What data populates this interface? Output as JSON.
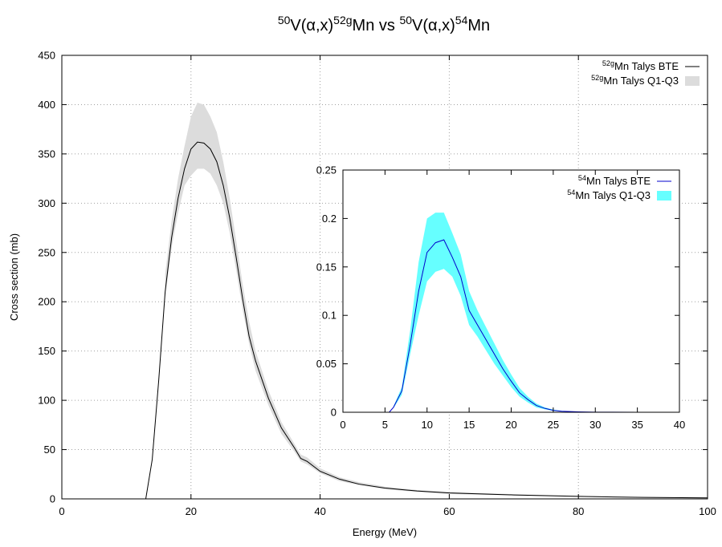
{
  "title_parts": [
    {
      "text": "50",
      "sup": true
    },
    {
      "text": "V(α,x)",
      "sup": false
    },
    {
      "text": "52g",
      "sup": true
    },
    {
      "text": "Mn vs ",
      "sup": false
    },
    {
      "text": "50",
      "sup": true
    },
    {
      "text": "V(α,x)",
      "sup": false
    },
    {
      "text": "54",
      "sup": true
    },
    {
      "text": "Mn",
      "sup": false
    }
  ],
  "chart_data": [
    {
      "id": "main",
      "type": "line",
      "xlabel": "Energy (MeV)",
      "ylabel": "Cross section (mb)",
      "xlim": [
        0,
        100
      ],
      "ylim": [
        0,
        450
      ],
      "xticks": [
        0,
        20,
        40,
        60,
        80,
        100
      ],
      "xtick_labels": [
        "0",
        "20",
        "40",
        "60",
        "80",
        "100"
      ],
      "yticks": [
        0,
        50,
        100,
        150,
        200,
        250,
        300,
        350,
        400,
        450
      ],
      "ytick_labels": [
        "0",
        "50",
        "100",
        "150",
        "200",
        "250",
        "300",
        "350",
        "400",
        "450"
      ],
      "grid": true,
      "legend_position": "top-right",
      "series": [
        {
          "legend": {
            "sup": "52g",
            "text": "Mn Talys BTE"
          },
          "kind": "line",
          "color": "#000000",
          "x": [
            0,
            13,
            14,
            15,
            16,
            17,
            18,
            19,
            20,
            21,
            22,
            23,
            24,
            25,
            26,
            27,
            28,
            29,
            30,
            32,
            34,
            36,
            37,
            38,
            40,
            43,
            46,
            50,
            55,
            60,
            70,
            80,
            90,
            100
          ],
          "y": [
            0,
            0,
            40,
            120,
            210,
            265,
            305,
            335,
            355,
            362,
            361,
            355,
            342,
            318,
            285,
            245,
            203,
            165,
            140,
            102,
            72,
            52,
            41,
            38,
            28,
            20,
            15,
            11,
            8,
            6,
            4,
            2.5,
            1.5,
            1
          ]
        },
        {
          "legend": {
            "sup": "52g",
            "text": "Mn Talys Q1-Q3"
          },
          "kind": "band",
          "color": "#dcdcdc",
          "x": [
            16,
            17,
            18,
            19,
            20,
            21,
            22,
            23,
            24,
            25,
            26,
            27,
            28,
            29,
            30,
            32,
            34,
            36,
            37,
            38,
            40,
            43,
            46,
            50,
            55,
            60,
            70,
            80,
            90,
            100
          ],
          "low": [
            205,
            255,
            290,
            318,
            328,
            335,
            335,
            330,
            318,
            300,
            270,
            232,
            192,
            157,
            130,
            95,
            66,
            48,
            38,
            35,
            26,
            18,
            14,
            10,
            7,
            5,
            3.5,
            2.2,
            1.3,
            0.8
          ],
          "high": [
            228,
            282,
            325,
            358,
            388,
            402,
            400,
            388,
            372,
            342,
            305,
            262,
            218,
            180,
            150,
            110,
            78,
            56,
            45,
            42,
            31,
            22,
            17,
            12.5,
            9,
            7,
            4.8,
            3,
            1.8,
            1.2
          ]
        }
      ]
    },
    {
      "id": "inset",
      "type": "line",
      "xlim": [
        0,
        40
      ],
      "ylim": [
        0,
        0.25
      ],
      "xticks": [
        0,
        5,
        10,
        15,
        20,
        25,
        30,
        35,
        40
      ],
      "xtick_labels": [
        "0",
        "5",
        "10",
        "15",
        "20",
        "25",
        "30",
        "35",
        "40"
      ],
      "yticks": [
        0,
        0.05,
        0.1,
        0.15,
        0.2,
        0.25
      ],
      "ytick_labels": [
        "0",
        "0.05",
        "0.1",
        "0.15",
        "0.2",
        "0.25"
      ],
      "grid": false,
      "legend_position": "top-right",
      "series": [
        {
          "legend": {
            "sup": "54",
            "text": "Mn Talys BTE"
          },
          "kind": "line",
          "color": "#0000cc",
          "x": [
            0,
            5.5,
            6,
            7,
            8,
            9,
            10,
            11,
            12,
            13,
            14,
            15,
            16,
            17,
            18,
            19,
            20,
            21,
            22,
            23,
            24,
            25,
            26,
            28,
            30,
            35,
            40
          ],
          "y": [
            0,
            0,
            0.005,
            0.022,
            0.07,
            0.125,
            0.165,
            0.175,
            0.178,
            0.16,
            0.14,
            0.105,
            0.09,
            0.075,
            0.06,
            0.045,
            0.032,
            0.02,
            0.013,
            0.007,
            0.004,
            0.002,
            0.001,
            0.0004,
            0.0001,
            0,
            0
          ]
        },
        {
          "legend": {
            "sup": "54",
            "text": "Mn Talys Q1-Q3"
          },
          "kind": "band",
          "color": "#66ffff",
          "x": [
            6,
            7,
            8,
            9,
            10,
            11,
            12,
            13,
            14,
            15,
            16,
            17,
            18,
            19,
            20,
            21,
            22,
            23,
            24,
            25,
            26,
            28,
            30
          ],
          "low": [
            0.004,
            0.018,
            0.06,
            0.1,
            0.135,
            0.145,
            0.148,
            0.14,
            0.12,
            0.09,
            0.078,
            0.064,
            0.05,
            0.038,
            0.026,
            0.016,
            0.01,
            0.005,
            0.003,
            0.0015,
            0.0008,
            0.0003,
            0.0001
          ],
          "high": [
            0.006,
            0.026,
            0.085,
            0.155,
            0.2,
            0.206,
            0.206,
            0.185,
            0.163,
            0.125,
            0.105,
            0.088,
            0.071,
            0.054,
            0.039,
            0.025,
            0.016,
            0.009,
            0.005,
            0.0028,
            0.0015,
            0.0005,
            0.0002
          ]
        }
      ]
    }
  ]
}
